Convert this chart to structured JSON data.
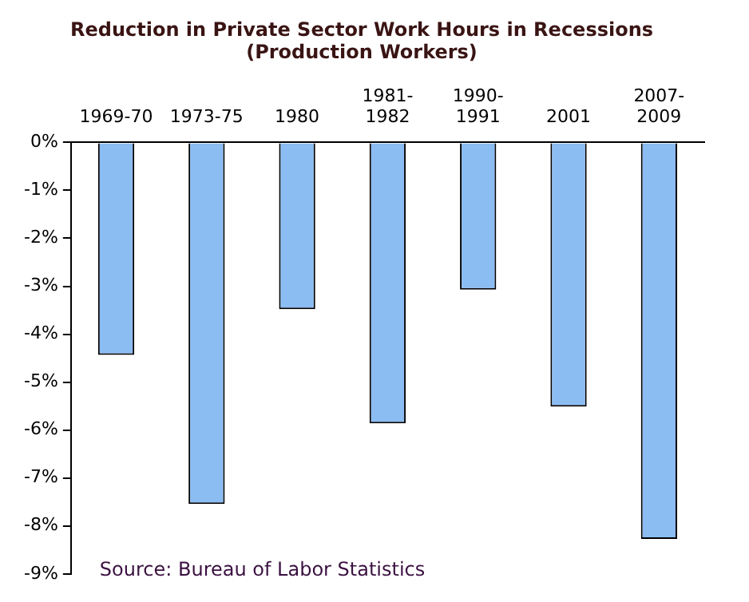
{
  "chart_data": {
    "type": "bar",
    "title": "Reduction in Private Sector Work Hours in Recessions\n(Production Workers)",
    "categories": [
      "1969-70",
      "1973-75",
      "1980",
      "1981-\n1982",
      "1990-\n1991",
      "2001",
      "2007-\n2009"
    ],
    "values": [
      -4.43,
      -7.54,
      -3.48,
      -5.86,
      -3.07,
      -5.51,
      -8.27
    ],
    "color": "#8bbcf2",
    "ylim": [
      -9,
      0
    ],
    "yticks": [
      {
        "value": -9,
        "label": "-9%"
      },
      {
        "value": -8,
        "label": "-8%"
      },
      {
        "value": -7,
        "label": "-7%"
      },
      {
        "value": -6,
        "label": "-6%"
      },
      {
        "value": -5,
        "label": "-5%"
      },
      {
        "value": -4,
        "label": "-4%"
      },
      {
        "value": -3,
        "label": "-3%"
      },
      {
        "value": -2,
        "label": "-2%"
      },
      {
        "value": -1,
        "label": "-1%"
      },
      {
        "value": 0,
        "label": "0%"
      }
    ],
    "annotations": [
      "Source: Bureau of Labor Statistics"
    ],
    "grid": false,
    "legend": false
  }
}
